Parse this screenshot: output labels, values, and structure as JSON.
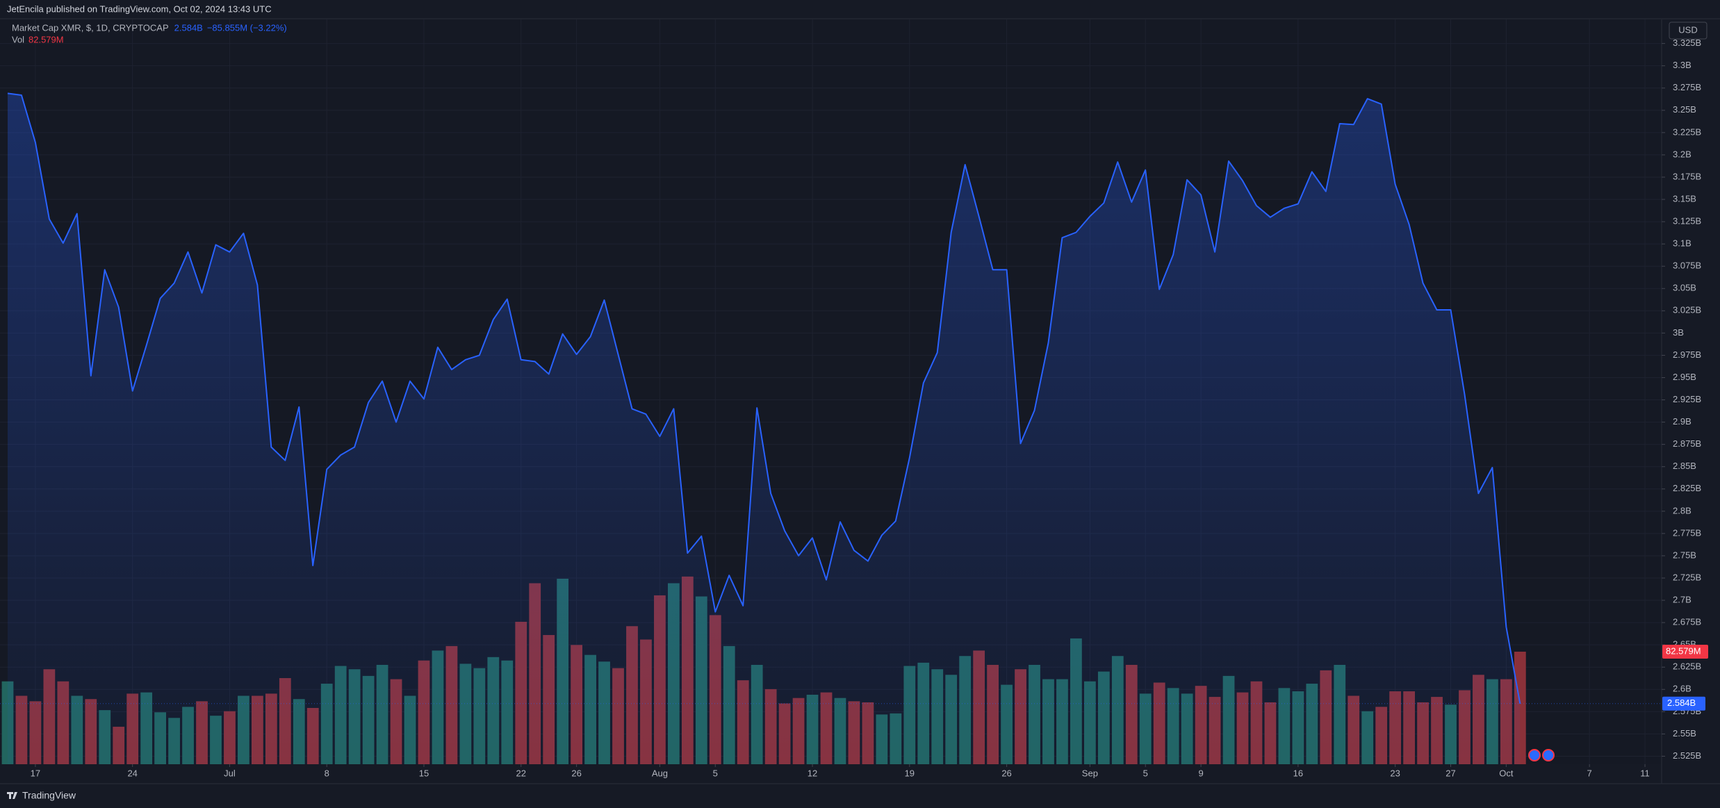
{
  "header": {
    "published": "JetEncila published on TradingView.com, Oct 02, 2024 13:43 UTC"
  },
  "chart_data": {
    "type": "area",
    "currency": "USD",
    "brand": "TradingView",
    "grid": true,
    "series": [
      {
        "name": "Market Cap XMR, $, 1D, CRYPTOCAP",
        "color": "#2962ff",
        "last_value_label": "2.584B",
        "change_label": "−85.855M (−3.22%)",
        "values": [
          3.269,
          3.267,
          3.214,
          3.128,
          3.101,
          3.134,
          2.952,
          3.071,
          3.029,
          2.935,
          2.986,
          3.039,
          3.056,
          3.091,
          3.045,
          3.099,
          3.091,
          3.112,
          3.054,
          2.872,
          2.857,
          2.917,
          2.739,
          2.847,
          2.863,
          2.872,
          2.922,
          2.946,
          2.9,
          2.946,
          2.926,
          2.984,
          2.959,
          2.97,
          2.975,
          3.015,
          3.038,
          2.97,
          2.968,
          2.954,
          2.999,
          2.976,
          2.996,
          3.037,
          2.976,
          2.915,
          2.909,
          2.884,
          2.915,
          2.753,
          2.772,
          2.687,
          2.728,
          2.694,
          2.916,
          2.82,
          2.778,
          2.75,
          2.77,
          2.723,
          2.788,
          2.756,
          2.744,
          2.773,
          2.789,
          2.86,
          2.944,
          2.978,
          3.113,
          3.189,
          3.131,
          3.071,
          3.071,
          2.876,
          2.913,
          2.989,
          3.107,
          3.113,
          3.131,
          3.146,
          3.192,
          3.147,
          3.183,
          3.049,
          3.088,
          3.172,
          3.155,
          3.091,
          3.193,
          3.171,
          3.143,
          3.13,
          3.14,
          3.145,
          3.181,
          3.159,
          3.235,
          3.234,
          3.263,
          3.257,
          3.167,
          3.122,
          3.056,
          3.026,
          3.026,
          2.931,
          2.82,
          2.849,
          2.67,
          2.584
        ]
      },
      {
        "name": "Vol",
        "type": "bar",
        "up_color": "#22655f",
        "down_color": "#8b3139",
        "last_value_label": "82.579M",
        "values": [
          60.8,
          50.2,
          46.2,
          69.7,
          60.8,
          50.2,
          47.8,
          39.7,
          27.5,
          51.8,
          52.7,
          38.1,
          34.0,
          42.1,
          46.2,
          35.6,
          38.9,
          50.2,
          50.2,
          51.8,
          63.2,
          47.8,
          41.3,
          59.1,
          72.1,
          69.7,
          64.8,
          72.9,
          62.4,
          50.2,
          76.1,
          83.4,
          86.7,
          73.7,
          70.5,
          78.6,
          76.1,
          104.5,
          132.8,
          94.8,
          136.1,
          87.5,
          80.2,
          75.3,
          70.5,
          101.3,
          91.5,
          123.9,
          132.8,
          137.7,
          123.1,
          109.4,
          86.7,
          61.6,
          72.9,
          55.1,
          44.6,
          48.6,
          51.0,
          52.7,
          48.6,
          46.2,
          45.4,
          36.5,
          37.3,
          72.1,
          74.5,
          69.7,
          65.6,
          79.4,
          83.4,
          72.9,
          58.3,
          69.7,
          72.9,
          62.4,
          62.4,
          92.3,
          60.8,
          68.0,
          79.4,
          72.9,
          51.8,
          59.9,
          55.9,
          51.8,
          57.5,
          49.4,
          64.8,
          52.7,
          60.8,
          45.4,
          55.9,
          53.5,
          59.1,
          68.9,
          72.9,
          50.2,
          38.9,
          42.1,
          53.5,
          53.5,
          45.4,
          49.4,
          43.7,
          54.3,
          65.6,
          62.4,
          62.4,
          82.579
        ]
      }
    ],
    "ylim": [
      2.516,
      3.352
    ],
    "yticks": [
      {
        "value": 2.525,
        "label": "2.525B"
      },
      {
        "value": 2.55,
        "label": "2.55B"
      },
      {
        "value": 2.575,
        "label": "2.575B"
      },
      {
        "value": 2.6,
        "label": "2.6B"
      },
      {
        "value": 2.625,
        "label": "2.625B"
      },
      {
        "value": 2.65,
        "label": "2.65B"
      },
      {
        "value": 2.675,
        "label": "2.675B"
      },
      {
        "value": 2.7,
        "label": "2.7B"
      },
      {
        "value": 2.725,
        "label": "2.725B"
      },
      {
        "value": 2.75,
        "label": "2.75B"
      },
      {
        "value": 2.775,
        "label": "2.775B"
      },
      {
        "value": 2.8,
        "label": "2.8B"
      },
      {
        "value": 2.825,
        "label": "2.825B"
      },
      {
        "value": 2.85,
        "label": "2.85B"
      },
      {
        "value": 2.875,
        "label": "2.875B"
      },
      {
        "value": 2.9,
        "label": "2.9B"
      },
      {
        "value": 2.925,
        "label": "2.925B"
      },
      {
        "value": 2.95,
        "label": "2.95B"
      },
      {
        "value": 2.975,
        "label": "2.975B"
      },
      {
        "value": 3.0,
        "label": "3B"
      },
      {
        "value": 3.025,
        "label": "3.025B"
      },
      {
        "value": 3.05,
        "label": "3.05B"
      },
      {
        "value": 3.075,
        "label": "3.075B"
      },
      {
        "value": 3.1,
        "label": "3.1B"
      },
      {
        "value": 3.125,
        "label": "3.125B"
      },
      {
        "value": 3.15,
        "label": "3.15B"
      },
      {
        "value": 3.175,
        "label": "3.175B"
      },
      {
        "value": 3.2,
        "label": "3.2B"
      },
      {
        "value": 3.225,
        "label": "3.225B"
      },
      {
        "value": 3.25,
        "label": "3.25B"
      },
      {
        "value": 3.275,
        "label": "3.275B"
      },
      {
        "value": 3.3,
        "label": "3.3B"
      },
      {
        "value": 3.325,
        "label": "3.325B"
      }
    ],
    "xlim": [
      -0.55,
      119.2
    ],
    "xticks": [
      {
        "value": 2,
        "label": "17"
      },
      {
        "value": 9,
        "label": "24"
      },
      {
        "value": 16,
        "label": "Jul"
      },
      {
        "value": 23,
        "label": "8"
      },
      {
        "value": 30,
        "label": "15"
      },
      {
        "value": 37,
        "label": "22"
      },
      {
        "value": 41,
        "label": "26"
      },
      {
        "value": 47,
        "label": "Aug"
      },
      {
        "value": 51,
        "label": "5"
      },
      {
        "value": 58,
        "label": "12"
      },
      {
        "value": 65,
        "label": "19"
      },
      {
        "value": 72,
        "label": "26"
      },
      {
        "value": 78,
        "label": "Sep"
      },
      {
        "value": 82,
        "label": "5"
      },
      {
        "value": 86,
        "label": "9"
      },
      {
        "value": 93,
        "label": "16"
      },
      {
        "value": 100,
        "label": "23"
      },
      {
        "value": 104,
        "label": "27"
      },
      {
        "value": 108,
        "label": "Oct"
      },
      {
        "value": 114,
        "label": "7"
      },
      {
        "value": 118,
        "label": "11"
      }
    ]
  }
}
